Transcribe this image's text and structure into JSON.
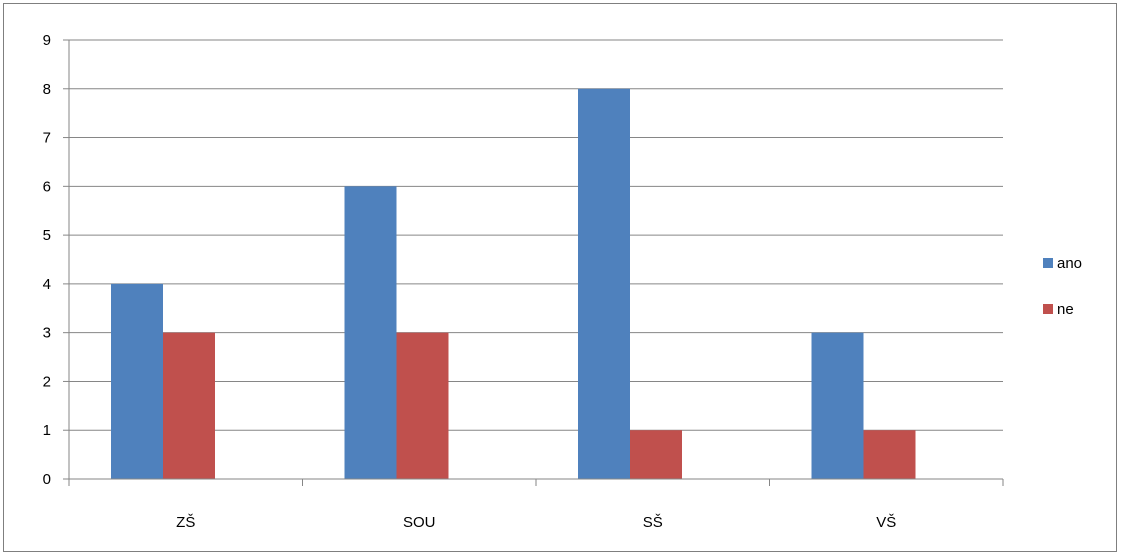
{
  "chart_data": {
    "type": "bar",
    "categories": [
      "ZŠ",
      "SOU",
      "SŠ",
      "VŠ"
    ],
    "series": [
      {
        "name": "ano",
        "values": [
          4,
          6,
          8,
          3
        ],
        "color": "#4f81bd"
      },
      {
        "name": "ne",
        "values": [
          3,
          3,
          1,
          1
        ],
        "color": "#c0504d"
      }
    ],
    "ylim": [
      0,
      9
    ],
    "yticks": [
      0,
      1,
      2,
      3,
      4,
      5,
      6,
      7,
      8,
      9
    ],
    "grid": true,
    "legend_position": "right",
    "gridline_color": "#868686",
    "axis_color": "#868686"
  }
}
